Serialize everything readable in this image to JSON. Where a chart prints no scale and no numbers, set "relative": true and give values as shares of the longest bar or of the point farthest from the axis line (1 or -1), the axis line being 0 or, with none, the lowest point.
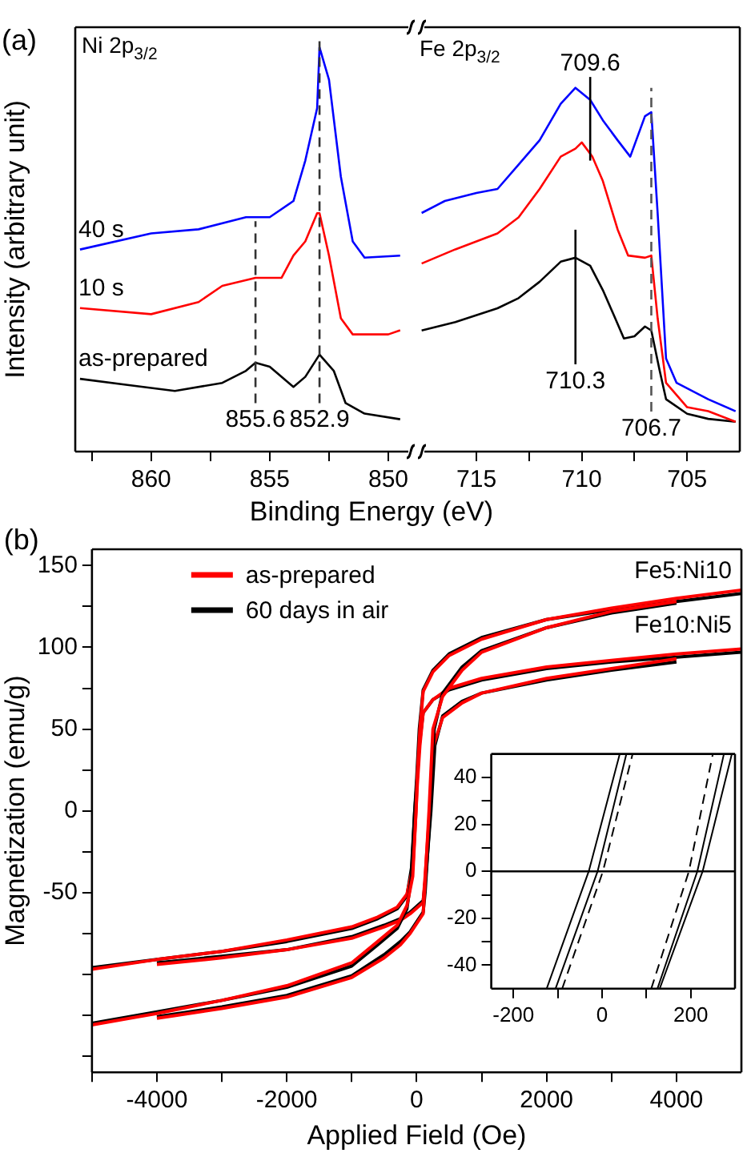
{
  "chart_data": [
    {
      "type": "line",
      "relative": true,
      "ylabel": "Intensity (arbitrary unit)",
      "xlabel": "Binding Energy (eV)",
      "xlim": [
        863.2,
        849
      ],
      "xticks": [
        {
          "value": 862.5,
          "label": null
        },
        860,
        {
          "value": 857.5,
          "label": null
        },
        855,
        {
          "value": 852.5,
          "label": null
        },
        850
      ],
      "annotations": [
        "(a)",
        "Ni 2p$_{3/2}$"
      ],
      "ref_lines": [
        {
          "axis": "x",
          "value": 855.6,
          "label": "855.6",
          "color": "#333333",
          "line_style": "dashed"
        },
        {
          "axis": "x",
          "value": 852.9,
          "label": "852.9",
          "color": "#333333",
          "line_style": "dashed"
        }
      ],
      "series": [
        {
          "name": "40 s",
          "color": "#0000ff",
          "x": [
            863,
            860,
            858,
            856,
            855,
            854,
            853.5,
            853,
            852.9,
            852.5,
            852,
            851.5,
            851,
            849.5
          ],
          "values": [
            0.5,
            0.54,
            0.55,
            0.58,
            0.58,
            0.62,
            0.72,
            0.85,
            1,
            0.92,
            0.68,
            0.52,
            0.48,
            0.485
          ]
        },
        {
          "name": "10 s",
          "color": "#ff0000",
          "x": [
            863,
            860,
            858,
            857,
            855.6,
            854.5,
            854,
            853.5,
            853,
            852.9,
            852.5,
            852,
            851.5,
            850,
            849.5
          ],
          "values": [
            0.355,
            0.34,
            0.37,
            0.41,
            0.43,
            0.43,
            0.485,
            0.52,
            0.59,
            0.59,
            0.485,
            0.33,
            0.29,
            0.29,
            0.3
          ]
        },
        {
          "name": "as-prepared",
          "color": "#000000",
          "x": [
            863,
            861,
            859,
            857,
            856,
            855.6,
            855,
            854,
            853.5,
            852.9,
            852.3,
            851.8,
            851,
            849.5
          ],
          "values": [
            0.18,
            0.165,
            0.15,
            0.17,
            0.2,
            0.22,
            0.21,
            0.16,
            0.185,
            0.24,
            0.2,
            0.12,
            0.094,
            0.08
          ]
        }
      ]
    },
    {
      "type": "line",
      "relative": true,
      "xlim": [
        717.7,
        702.5
      ],
      "xticks": [
        715,
        {
          "value": 712.5,
          "label": null
        },
        710,
        {
          "value": 707.5,
          "label": null
        },
        705
      ],
      "annotations": [
        "Fe 2p$_{3/2}$"
      ],
      "ref_lines": [
        {
          "axis": "x",
          "value": 706.7,
          "label": "706.7",
          "color": "#555555",
          "line_style": "dashed"
        },
        {
          "axis": "x",
          "value": 710.3,
          "label": "710.3",
          "color": "#000000",
          "line_style": "solid"
        },
        {
          "axis": "x",
          "value": 709.6,
          "label": "709.6",
          "color": "#000000",
          "line_style": "solid"
        }
      ],
      "series": [
        {
          "color": "#0000ff",
          "x": [
            717.6,
            716.5,
            715,
            714,
            713,
            712,
            711,
            710.3,
            709.6,
            709,
            708.3,
            707.7,
            707,
            706.7,
            706.4,
            706,
            705.5,
            704,
            702.7
          ],
          "values": [
            0.656,
            0.689,
            0.711,
            0.722,
            0.789,
            0.856,
            0.956,
            1,
            0.967,
            0.911,
            0.856,
            0.811,
            0.922,
            0.933,
            0.656,
            0.256,
            0.189,
            0.144,
            0.111
          ]
        },
        {
          "color": "#ff0000",
          "x": [
            717.6,
            716,
            714,
            713,
            712,
            711,
            710.3,
            710,
            709.5,
            709,
            708.3,
            707.8,
            707,
            706.7,
            706.4,
            706,
            705,
            704,
            702.7
          ],
          "values": [
            0.517,
            0.556,
            0.6,
            0.644,
            0.722,
            0.811,
            0.833,
            0.85,
            0.811,
            0.744,
            0.611,
            0.539,
            0.533,
            0.539,
            0.367,
            0.189,
            0.122,
            0.111,
            0.082
          ]
        },
        {
          "color": "#000000",
          "x": [
            717.6,
            716,
            714,
            713,
            712,
            711,
            710.3,
            709.6,
            709,
            708.5,
            708,
            707.5,
            707,
            706.7,
            706.3,
            706,
            705,
            704,
            702.7
          ],
          "values": [
            0.333,
            0.356,
            0.394,
            0.422,
            0.467,
            0.522,
            0.533,
            0.511,
            0.444,
            0.378,
            0.311,
            0.317,
            0.344,
            0.333,
            0.222,
            0.144,
            0.104,
            0.09,
            0.082
          ]
        }
      ]
    },
    {
      "type": "line",
      "xlabel": "Applied Field (Oe)",
      "ylabel": "Magnetization (emu/g)",
      "xlim": [
        -5000,
        5000
      ],
      "ylim": [
        -160,
        160
      ],
      "legend": "top left",
      "xticks": [
        {
          "value": -5000,
          "label": null
        },
        -4000,
        {
          "value": -3000,
          "label": null
        },
        -2000,
        {
          "value": -1000,
          "label": null
        },
        0,
        {
          "value": 1000,
          "label": null
        },
        2000,
        {
          "value": 3000,
          "label": null
        },
        4000
      ],
      "yticks": [
        {
          "value": -150,
          "label": null
        },
        {
          "value": -125,
          "label": null
        },
        {
          "value": -100,
          "label": null
        },
        {
          "value": -75,
          "label": null
        },
        -50,
        {
          "value": -25,
          "label": null
        },
        0,
        {
          "value": 25,
          "label": null
        },
        50,
        {
          "value": 75,
          "label": null
        },
        100,
        {
          "value": 125,
          "label": null
        },
        150
      ],
      "annotations": [
        "(b)",
        "Fe5:Ni10",
        "Fe10:Ni5"
      ],
      "series": [
        {
          "name": "as-prepared",
          "color": "#ff0000",
          "x": [
            5000,
            4000,
            3000,
            2000,
            1000,
            500,
            250,
            100,
            50,
            10,
            -10,
            -60,
            -150,
            -300,
            -600,
            -1000,
            -2000,
            -3000,
            -4000,
            -5000
          ],
          "values": [
            135,
            130,
            124,
            117,
            105,
            95,
            85,
            73,
            50,
            22,
            0,
            -40,
            -58,
            -70,
            -80,
            -93,
            -107,
            -116,
            -124,
            -131
          ]
        },
        {
          "color": "#ff0000",
          "x": [
            -4000,
            -3000,
            -2000,
            -1000,
            -500,
            -250,
            -100,
            100,
            120,
            190,
            250,
            400,
            700,
            1000,
            2000,
            3000,
            4000
          ],
          "values": [
            -127,
            -121,
            -114,
            -102,
            -90,
            -82,
            -75,
            -63,
            -50,
            0,
            50,
            70,
            86,
            97,
            112,
            122,
            128
          ]
        },
        {
          "name": "60 days in air",
          "color": "#000000",
          "x": [
            5000,
            4000,
            3000,
            2000,
            1000,
            500,
            250,
            100,
            40,
            0,
            -30,
            -80,
            -150,
            -300,
            -600,
            -1000,
            -2000,
            -3000,
            -4000,
            -5000
          ],
          "values": [
            133,
            128,
            123,
            117,
            106,
            96,
            86,
            74,
            50,
            20,
            0,
            -40,
            -60,
            -72,
            -82,
            -95,
            -108,
            -116,
            -123,
            -130
          ]
        },
        {
          "color": "#000000",
          "x": [
            -4000,
            -3000,
            -2000,
            -1000,
            -500,
            -250,
            -100,
            100,
            130,
            210,
            270,
            400,
            700,
            1000,
            2000,
            3000,
            4000
          ],
          "values": [
            -126,
            -120,
            -113,
            -101,
            -88,
            -80,
            -74,
            -62,
            -50,
            0,
            50,
            72,
            88,
            98,
            112,
            121,
            127
          ]
        },
        {
          "color": "#ff0000",
          "x": [
            5000,
            4000,
            3000,
            2000,
            1000,
            500,
            250,
            100,
            50,
            10,
            -10,
            -60,
            -150,
            -300,
            -600,
            -1000,
            -2000,
            -3000,
            -4000,
            -5000
          ],
          "values": [
            99,
            96,
            92,
            88,
            81,
            75,
            68,
            60,
            40,
            16,
            0,
            -35,
            -51,
            -59,
            -65,
            -71,
            -79,
            -86,
            -91,
            -97
          ]
        },
        {
          "color": "#ff0000",
          "x": [
            -4000,
            -3000,
            -2000,
            -1000,
            -500,
            -250,
            -100,
            100,
            130,
            200,
            260,
            400,
            700,
            1000,
            2000,
            3000,
            4000
          ],
          "values": [
            -94,
            -90,
            -85,
            -78,
            -71,
            -67,
            -63,
            -56,
            -40,
            0,
            40,
            57,
            66,
            72,
            81,
            87,
            93
          ]
        },
        {
          "color": "#000000",
          "x": [
            5000,
            4000,
            3000,
            2000,
            1000,
            500,
            250,
            100,
            40,
            0,
            -30,
            -80,
            -150,
            -300,
            -600,
            -1000,
            -2000,
            -3000,
            -4000,
            -5000
          ],
          "values": [
            97,
            94,
            91,
            87,
            80,
            74,
            68,
            60,
            40,
            15,
            0,
            -35,
            -52,
            -60,
            -66,
            -72,
            -80,
            -86,
            -91,
            -96
          ]
        },
        {
          "color": "#000000",
          "x": [
            -4000,
            -3000,
            -2000,
            -1000,
            -500,
            -250,
            -100,
            100,
            140,
            220,
            280,
            400,
            700,
            1000,
            2000,
            3000,
            4000
          ],
          "values": [
            -93,
            -89,
            -85,
            -77,
            -70,
            -66,
            -62,
            -55,
            -40,
            0,
            40,
            58,
            67,
            72,
            80,
            86,
            91
          ]
        }
      ]
    },
    {
      "type": "line",
      "xlim": [
        -250,
        300
      ],
      "ylim": [
        -50,
        50
      ],
      "xticks": [
        -200,
        {
          "value": -100,
          "label": null
        },
        0,
        {
          "value": 100,
          "label": null
        },
        200
      ],
      "yticks": [
        -40,
        {
          "value": -30,
          "label": null
        },
        -20,
        {
          "value": -10,
          "label": null
        },
        0,
        {
          "value": 10,
          "label": null
        },
        20,
        {
          "value": 30,
          "label": null
        },
        40
      ],
      "ref_lines": [
        {
          "axis": "y",
          "value": 0,
          "color": "#000000",
          "line_style": "solid"
        }
      ],
      "series": [
        {
          "color": "#000000",
          "line_style": "solid",
          "x": [
            -125,
            -30,
            40
          ],
          "values": [
            -50,
            0,
            50
          ]
        },
        {
          "color": "#000000",
          "line_style": "solid",
          "x": [
            -105,
            -10,
            55
          ],
          "values": [
            -50,
            0,
            50
          ]
        },
        {
          "color": "#000000",
          "line_style": "dashed",
          "x": [
            -90,
            2,
            69
          ],
          "values": [
            -50,
            0,
            50
          ]
        },
        {
          "color": "#000000",
          "line_style": "dashed",
          "x": [
            111,
            196,
            250
          ],
          "values": [
            -50,
            0,
            50
          ]
        },
        {
          "color": "#000000",
          "line_style": "solid",
          "x": [
            125,
            215,
            275
          ],
          "values": [
            -50,
            0,
            50
          ]
        },
        {
          "color": "#000000",
          "line_style": "solid",
          "x": [
            130,
            227,
            293
          ],
          "values": [
            -50,
            0,
            50
          ]
        }
      ]
    }
  ]
}
